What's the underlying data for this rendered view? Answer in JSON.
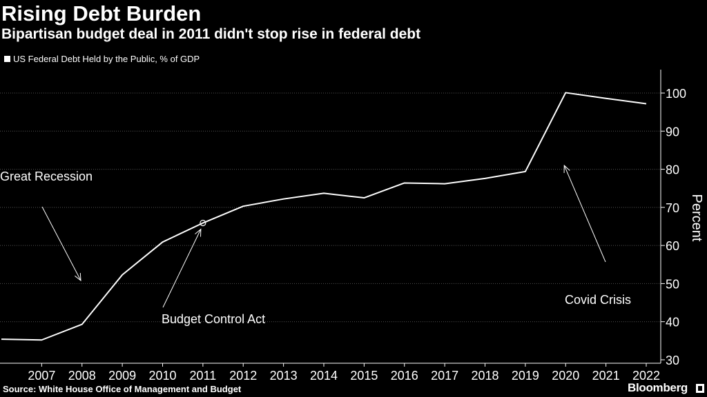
{
  "header": {
    "title": "Rising Debt Burden",
    "subtitle": "Bipartisan budget deal in 2011 didn't stop rise in federal debt"
  },
  "legend": {
    "label": "US Federal Debt Held by the Public, % of GDP"
  },
  "footer": {
    "source": "Source: White House Office of Management and Budget",
    "brand": "Bloomberg"
  },
  "colors": {
    "background": "#000000",
    "line": "#ffffff",
    "grid": "#555555"
  },
  "chart_data": {
    "type": "line",
    "title": "Rising Debt Burden",
    "xlabel": "",
    "ylabel": "Percent",
    "xlim": [
      2006,
      2022
    ],
    "ylim": [
      30,
      105
    ],
    "yticks": [
      30,
      40,
      50,
      60,
      70,
      80,
      90,
      100
    ],
    "xticks": [
      2007,
      2008,
      2009,
      2010,
      2011,
      2012,
      2013,
      2014,
      2015,
      2016,
      2017,
      2018,
      2019,
      2020,
      2021,
      2022
    ],
    "series": [
      {
        "name": "US Federal Debt Held by the Public, % of GDP",
        "x": [
          2006,
          2007,
          2008,
          2009,
          2010,
          2011,
          2012,
          2013,
          2014,
          2015,
          2016,
          2017,
          2018,
          2019,
          2020,
          2021,
          2022
        ],
        "values": [
          35.4,
          35.2,
          39.3,
          52.3,
          60.9,
          65.9,
          70.3,
          72.2,
          73.7,
          72.5,
          76.4,
          76.2,
          77.6,
          79.4,
          100.1,
          98.6,
          97.2
        ]
      }
    ],
    "annotations": [
      {
        "label": "Great Recession",
        "x": 2008,
        "y": 50.5
      },
      {
        "label": "Budget Control Act",
        "x": 2011,
        "y": 65.9
      },
      {
        "label": "Covid Crisis",
        "x": 2020,
        "y": 81
      }
    ],
    "marker": {
      "x": 2011,
      "y": 65.9
    }
  }
}
